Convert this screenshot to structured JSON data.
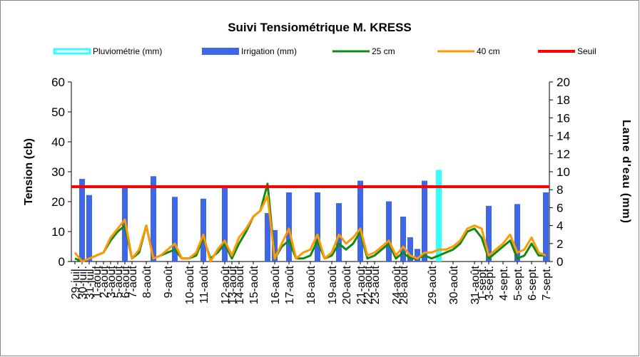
{
  "chart_data": {
    "type": "combo",
    "title": "Suivi Tensiométrique M. KRESS",
    "ylabel": "Tension (cb)",
    "y2label": "Lame d'eau (mm)",
    "ylim": [
      0,
      60
    ],
    "yticks": [
      0,
      10,
      20,
      30,
      40,
      50,
      60
    ],
    "y2lim": [
      0,
      20
    ],
    "y2ticks": [
      0,
      2,
      4,
      6,
      8,
      10,
      12,
      14,
      16,
      18,
      20
    ],
    "categories": [
      "29-juil.",
      "30-juil.",
      "31-juil.",
      "1-août",
      "2-août",
      "3-août",
      "5-août",
      "6-août",
      "7-août",
      null,
      "8-août",
      null,
      null,
      "9-août",
      null,
      null,
      "10-août",
      null,
      "11-août",
      null,
      null,
      "12-août",
      "13-août",
      "14-août",
      null,
      "15-août",
      null,
      null,
      "16-août",
      null,
      "17-août",
      null,
      null,
      "18-août",
      null,
      null,
      "19-août",
      null,
      "20-août",
      null,
      "21-août",
      "22-août",
      "23-août",
      null,
      null,
      "24-août",
      "28-août",
      null,
      null,
      null,
      "29-août",
      null,
      null,
      "30-août",
      null,
      null,
      "31-août",
      "1-sept.",
      "3-sept.",
      null,
      "4-sept.",
      null,
      "5-sept.",
      null,
      "6-sept.",
      null,
      "7-sept."
    ],
    "series": [
      {
        "name": "Pluviométrie (mm)",
        "type": "bar",
        "axis": "y2",
        "color": "#33ffff",
        "values": [
          null,
          null,
          null,
          null,
          null,
          null,
          null,
          null,
          null,
          null,
          null,
          null,
          null,
          null,
          null,
          null,
          null,
          null,
          null,
          null,
          null,
          null,
          null,
          null,
          null,
          null,
          null,
          null,
          null,
          null,
          null,
          null,
          null,
          null,
          null,
          null,
          null,
          null,
          null,
          null,
          null,
          null,
          null,
          null,
          null,
          null,
          null,
          null,
          null,
          null,
          null,
          10.2,
          null,
          null,
          null,
          null,
          null,
          null,
          null,
          null,
          null,
          null,
          null,
          null,
          null,
          null,
          null
        ]
      },
      {
        "name": "Irrigation (mm)",
        "type": "bar",
        "axis": "y2",
        "color": "#3d66e8",
        "values": [
          null,
          9.2,
          7.4,
          null,
          null,
          null,
          null,
          8.2,
          null,
          null,
          null,
          9.5,
          null,
          null,
          7.2,
          null,
          null,
          null,
          7,
          null,
          null,
          8.5,
          null,
          null,
          null,
          null,
          null,
          5.4,
          3.5,
          null,
          7.7,
          null,
          null,
          null,
          7.7,
          null,
          null,
          6.5,
          null,
          null,
          9,
          null,
          null,
          null,
          6.7,
          null,
          5,
          2.7,
          1.4,
          9,
          null,
          null,
          null,
          null,
          null,
          null,
          null,
          null,
          6.2,
          null,
          null,
          null,
          6.4,
          null,
          null,
          null,
          7.7
        ]
      },
      {
        "name": "25 cm",
        "type": "line",
        "color": "#138a13",
        "values": [
          1,
          0,
          1,
          2,
          3,
          7,
          10,
          12,
          1,
          3,
          12,
          1,
          2,
          3,
          4,
          1,
          1,
          2,
          8,
          1,
          3,
          6,
          1,
          6,
          10,
          15,
          17,
          26,
          1,
          5,
          7,
          1,
          1,
          2,
          7,
          1,
          2,
          6,
          4,
          6,
          10,
          1,
          2,
          4,
          6,
          1,
          3,
          1,
          1,
          2,
          1,
          2,
          3,
          4,
          6,
          10,
          11,
          8,
          1,
          3,
          5,
          7,
          1,
          2,
          6,
          2,
          2
        ]
      },
      {
        "name": "40 cm",
        "type": "line",
        "color": "#ff9900",
        "values": [
          3,
          0,
          1,
          2,
          3,
          8,
          11,
          14,
          1,
          4,
          12,
          1,
          2,
          4,
          6,
          1,
          1,
          3,
          9,
          0,
          4,
          7,
          2,
          8,
          11,
          15,
          17,
          22,
          1,
          6,
          11,
          1,
          3,
          4,
          9,
          1,
          3,
          9,
          6,
          8,
          11,
          2,
          3,
          5,
          7,
          2,
          5,
          2,
          1,
          3,
          3,
          4,
          4,
          5,
          7,
          11,
          12,
          11,
          2,
          4,
          6,
          9,
          3,
          4,
          8,
          3,
          2
        ]
      },
      {
        "name": "Seuil",
        "type": "hline",
        "color": "#ff0000",
        "value": 25
      }
    ]
  }
}
